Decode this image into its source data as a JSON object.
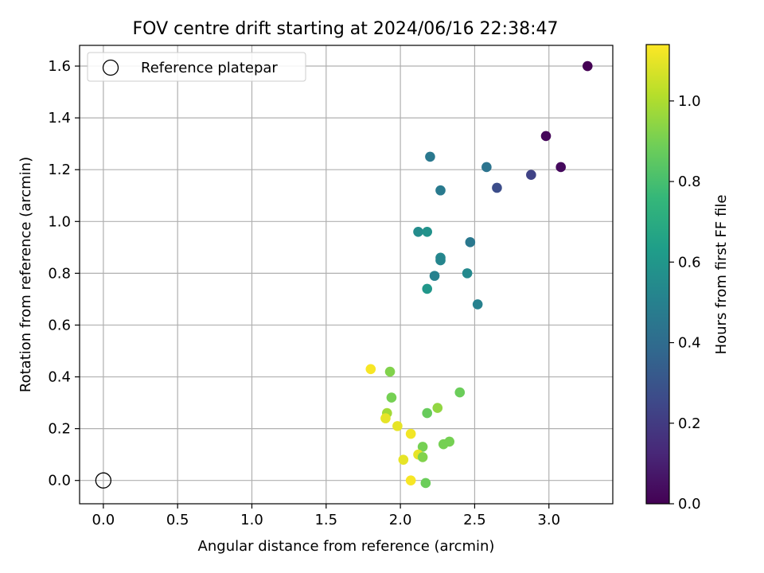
{
  "chart_data": {
    "type": "scatter",
    "title": "FOV centre drift starting at 2024/06/16 22:38:47",
    "xlabel": "Angular distance from reference (arcmin)",
    "ylabel": "Rotation from reference (arcmin)",
    "xlim": [
      -0.16,
      3.43
    ],
    "ylim": [
      -0.09,
      1.68
    ],
    "xticks": [
      "0.0",
      "0.5",
      "1.0",
      "1.5",
      "2.0",
      "2.5",
      "3.0"
    ],
    "yticks": [
      "0.0",
      "0.2",
      "0.4",
      "0.6",
      "0.8",
      "1.0",
      "1.2",
      "1.4",
      "1.6"
    ],
    "grid": true,
    "legend": {
      "position": "top-left",
      "entries": [
        "Reference platepar"
      ]
    },
    "reference": {
      "x": 0.0,
      "y": 0.0,
      "label": "Reference platepar",
      "marker": "open-circle"
    },
    "colorbar": {
      "label": "Hours from first FF file",
      "range": [
        0.0,
        1.14
      ],
      "ticks": [
        "0.0",
        "0.2",
        "0.4",
        "0.6",
        "0.8",
        "1.0"
      ],
      "colormap": "viridis"
    },
    "points": [
      {
        "x": 3.26,
        "y": 1.6,
        "c": 0.0
      },
      {
        "x": 2.98,
        "y": 1.33,
        "c": 0.02
      },
      {
        "x": 3.08,
        "y": 1.21,
        "c": 0.03
      },
      {
        "x": 2.88,
        "y": 1.18,
        "c": 0.23
      },
      {
        "x": 2.65,
        "y": 1.13,
        "c": 0.27
      },
      {
        "x": 2.58,
        "y": 1.21,
        "c": 0.44
      },
      {
        "x": 2.2,
        "y": 1.25,
        "c": 0.46
      },
      {
        "x": 2.27,
        "y": 1.12,
        "c": 0.47
      },
      {
        "x": 2.47,
        "y": 0.92,
        "c": 0.46
      },
      {
        "x": 2.12,
        "y": 0.96,
        "c": 0.55
      },
      {
        "x": 2.18,
        "y": 0.96,
        "c": 0.58
      },
      {
        "x": 2.27,
        "y": 0.86,
        "c": 0.53
      },
      {
        "x": 2.27,
        "y": 0.85,
        "c": 0.52
      },
      {
        "x": 2.45,
        "y": 0.8,
        "c": 0.54
      },
      {
        "x": 2.23,
        "y": 0.79,
        "c": 0.5
      },
      {
        "x": 2.18,
        "y": 0.74,
        "c": 0.6
      },
      {
        "x": 2.52,
        "y": 0.68,
        "c": 0.5
      },
      {
        "x": 1.8,
        "y": 0.43,
        "c": 1.13
      },
      {
        "x": 1.93,
        "y": 0.42,
        "c": 0.92
      },
      {
        "x": 1.94,
        "y": 0.32,
        "c": 0.9
      },
      {
        "x": 2.4,
        "y": 0.34,
        "c": 0.88
      },
      {
        "x": 1.91,
        "y": 0.26,
        "c": 0.98
      },
      {
        "x": 2.25,
        "y": 0.28,
        "c": 0.95
      },
      {
        "x": 2.18,
        "y": 0.26,
        "c": 0.87
      },
      {
        "x": 1.9,
        "y": 0.24,
        "c": 1.1
      },
      {
        "x": 1.98,
        "y": 0.21,
        "c": 1.1
      },
      {
        "x": 2.07,
        "y": 0.18,
        "c": 1.12
      },
      {
        "x": 2.33,
        "y": 0.15,
        "c": 0.9
      },
      {
        "x": 2.29,
        "y": 0.14,
        "c": 0.9
      },
      {
        "x": 2.15,
        "y": 0.13,
        "c": 0.9
      },
      {
        "x": 2.12,
        "y": 0.1,
        "c": 1.1
      },
      {
        "x": 2.15,
        "y": 0.09,
        "c": 0.92
      },
      {
        "x": 2.02,
        "y": 0.08,
        "c": 1.1
      },
      {
        "x": 2.07,
        "y": 0.0,
        "c": 1.13
      },
      {
        "x": 2.17,
        "y": -0.01,
        "c": 0.88
      }
    ]
  }
}
